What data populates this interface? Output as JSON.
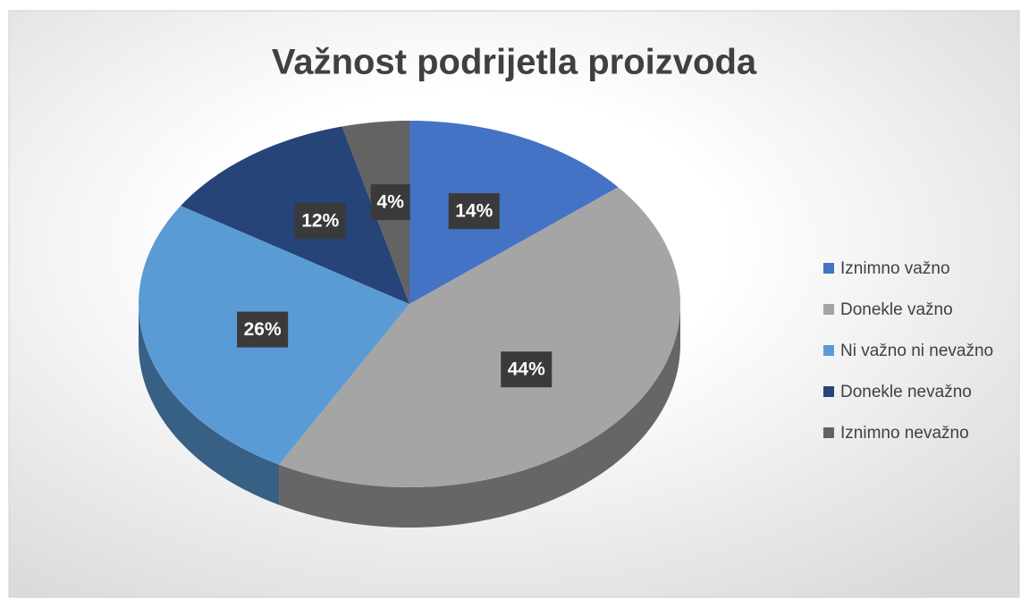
{
  "chart_data": {
    "type": "pie",
    "title": "Važnost podrijetla proizvoda",
    "categories": [
      "Iznimno važno",
      "Donekle važno",
      "Ni važno ni nevažno",
      "Donekle nevažno",
      "Iznimno nevažno"
    ],
    "values": [
      14,
      44,
      26,
      12,
      4
    ],
    "value_labels": [
      "14%",
      "44%",
      "26%",
      "12%",
      "4%"
    ],
    "colors": [
      "#4472c4",
      "#a5a5a5",
      "#5b9bd5",
      "#264478",
      "#636363"
    ],
    "legend": "right"
  }
}
